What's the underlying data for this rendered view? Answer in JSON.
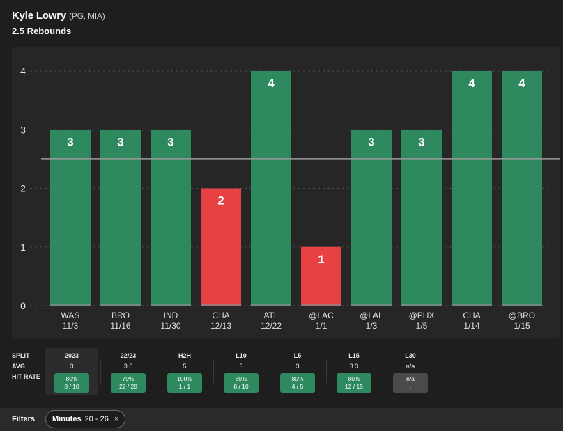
{
  "header": {
    "player_name": "Kyle Lowry",
    "player_meta": "(PG, MIA)",
    "prop": "2.5 Rebounds"
  },
  "colors": {
    "hit": "#2e8a5e",
    "miss": "#e84141",
    "line": "#9a9a9a",
    "grid": "#4a4a4a"
  },
  "chart_data": {
    "type": "bar",
    "title": "Kyle Lowry (PG, MIA) 2.5 Rebounds",
    "categories": [
      "WAS",
      "BRO",
      "IND",
      "CHA",
      "ATL",
      "@LAC",
      "@LAL",
      "@PHX",
      "CHA",
      "@BRO"
    ],
    "dates": [
      "11/3",
      "11/16",
      "11/30",
      "12/13",
      "12/22",
      "1/1",
      "1/3",
      "1/5",
      "1/14",
      "1/15"
    ],
    "values": [
      3,
      3,
      3,
      2,
      4,
      1,
      3,
      3,
      4,
      4
    ],
    "threshold": 2.5,
    "yticks": [
      0,
      1,
      2,
      3,
      4
    ],
    "ylim": [
      0,
      4
    ],
    "xlabel": "",
    "ylabel": "",
    "grid": true
  },
  "splits": {
    "row_labels": [
      "SPLIT",
      "AVG",
      "HIT RATE"
    ],
    "columns": [
      {
        "name": "2023",
        "avg": "3",
        "pct": "80%",
        "frac": "8 / 10",
        "na": false
      },
      {
        "name": "22/23",
        "avg": "3.6",
        "pct": "79%",
        "frac": "22 / 28",
        "na": false
      },
      {
        "name": "H2H",
        "avg": "5",
        "pct": "100%",
        "frac": "1 / 1",
        "na": false
      },
      {
        "name": "L10",
        "avg": "3",
        "pct": "80%",
        "frac": "8 / 10",
        "na": false
      },
      {
        "name": "L5",
        "avg": "3",
        "pct": "80%",
        "frac": "4 / 5",
        "na": false
      },
      {
        "name": "L15",
        "avg": "3.3",
        "pct": "80%",
        "frac": "12 / 15",
        "na": false
      },
      {
        "name": "L30",
        "avg": "n/a",
        "pct": "n/a",
        "frac": ".",
        "na": true
      }
    ]
  },
  "filters": {
    "label": "Filters",
    "chip_key": "Minutes",
    "chip_value": "20 - 26",
    "chip_close": "×"
  }
}
